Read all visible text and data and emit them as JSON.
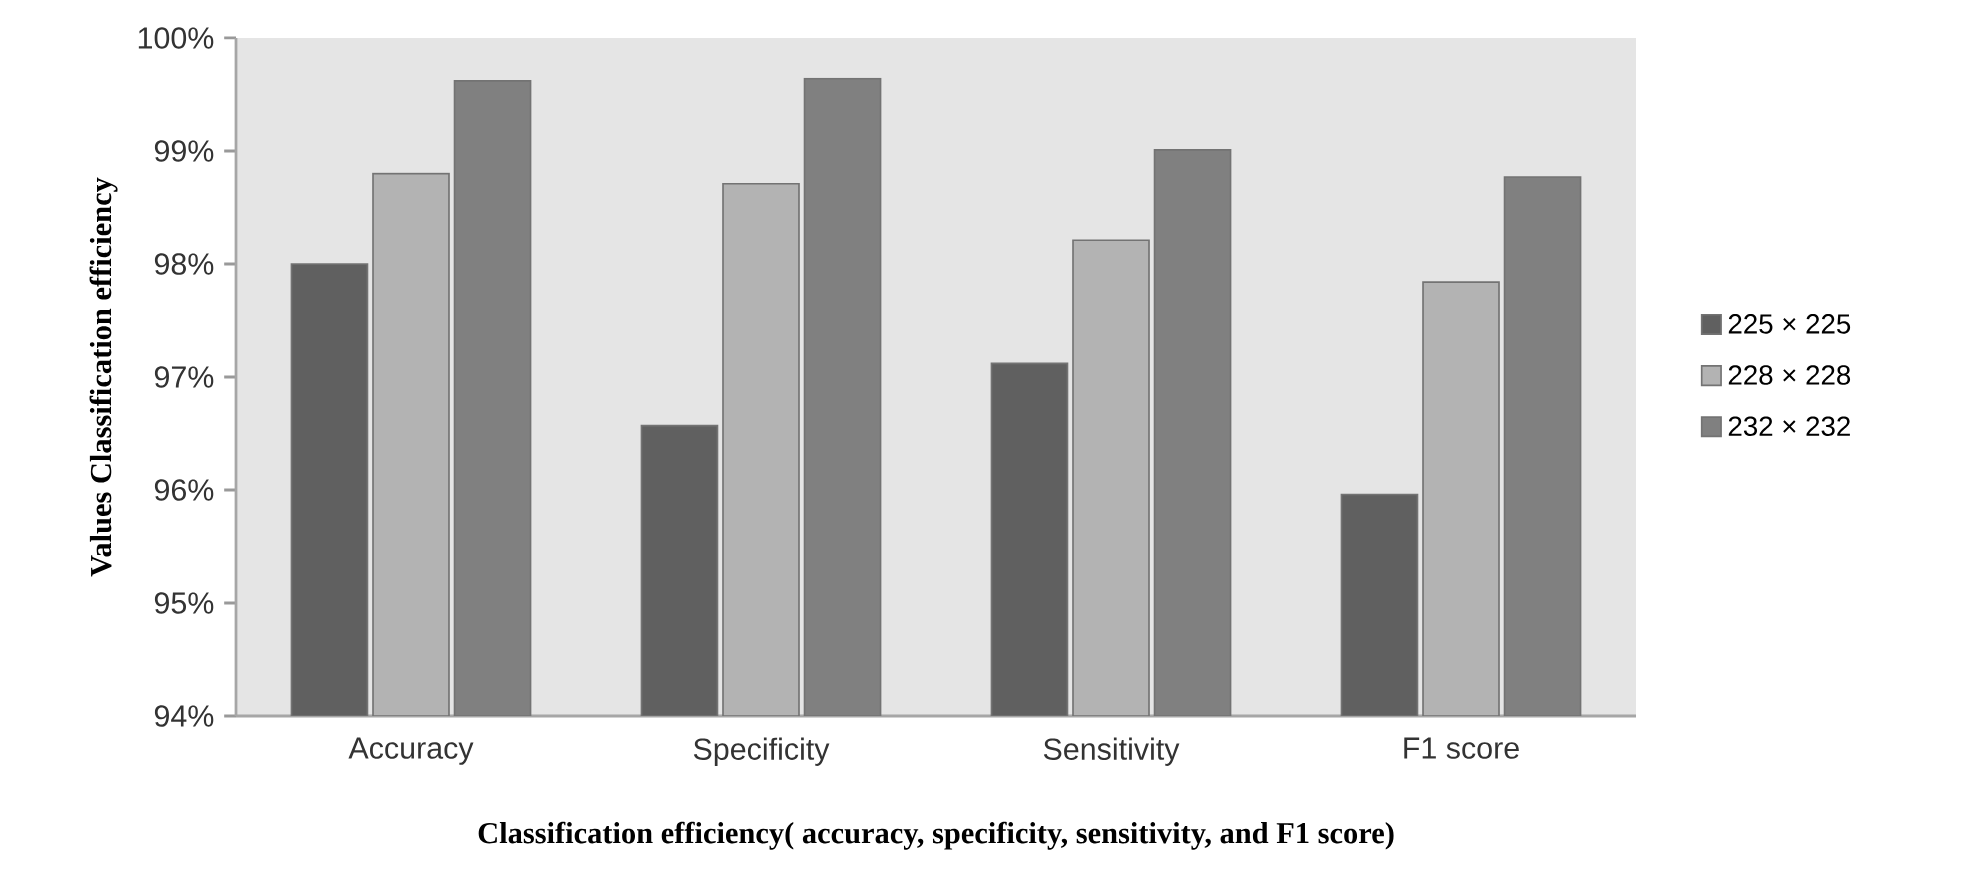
{
  "chart_data": {
    "type": "bar",
    "xlabel": "Classification efficiency( accuracy, specificity, sensitivity, and F1 score)",
    "ylabel": "Values Classification efficiency",
    "categories": [
      "Accuracy",
      "Specificity",
      "Sensitivity",
      "F1 score"
    ],
    "series": [
      {
        "name": "225 × 225",
        "color": "#606060",
        "values": [
          98.0,
          96.57,
          97.12,
          95.96
        ]
      },
      {
        "name": "228 × 228",
        "color": "#b3b3b3",
        "values": [
          98.8,
          98.71,
          98.21,
          97.84
        ]
      },
      {
        "name": "232 × 232",
        "color": "#808080",
        "values": [
          99.62,
          99.64,
          99.01,
          98.77
        ]
      }
    ],
    "ylim": [
      94,
      100
    ],
    "yticks": [
      {
        "value": 94,
        "label": "94%"
      },
      {
        "value": 95,
        "label": "95%"
      },
      {
        "value": 96,
        "label": "96%"
      },
      {
        "value": 97,
        "label": "97%"
      },
      {
        "value": 98,
        "label": "98%"
      },
      {
        "value": 99,
        "label": "99%"
      },
      {
        "value": 100,
        "label": "100%"
      }
    ],
    "legend": "right",
    "grid": false
  }
}
